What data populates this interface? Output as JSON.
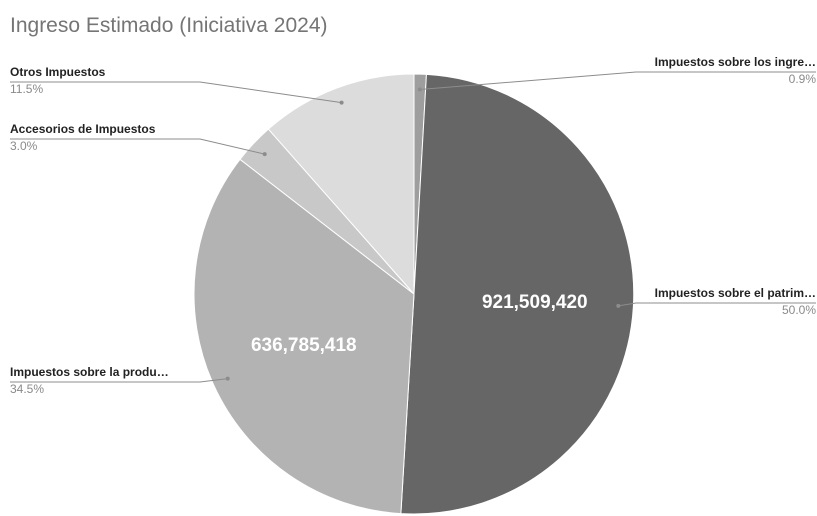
{
  "chart_data": {
    "type": "pie",
    "title": "Ingreso Estimado (Iniciativa 2024)",
    "slices": [
      {
        "label": "Impuestos sobre los ingre…",
        "percent": 0.9,
        "percent_label": "0.9%",
        "value_label": "",
        "color": "#9e9e9e"
      },
      {
        "label": "Impuestos sobre el patrim…",
        "percent": 50.0,
        "percent_label": "50.0%",
        "value_label": "921,509,420",
        "color": "#666666"
      },
      {
        "label": "Impuestos sobre la produ…",
        "percent": 34.5,
        "percent_label": "34.5%",
        "value_label": "636,785,418",
        "color": "#b3b3b3"
      },
      {
        "label": "Accesorios de Impuestos",
        "percent": 3.0,
        "percent_label": "3.0%",
        "value_label": "",
        "color": "#c8c8c8"
      },
      {
        "label": "Otros Impuestos",
        "percent": 11.5,
        "percent_label": "11.5%",
        "value_label": "",
        "color": "#dcdcdc"
      }
    ]
  }
}
